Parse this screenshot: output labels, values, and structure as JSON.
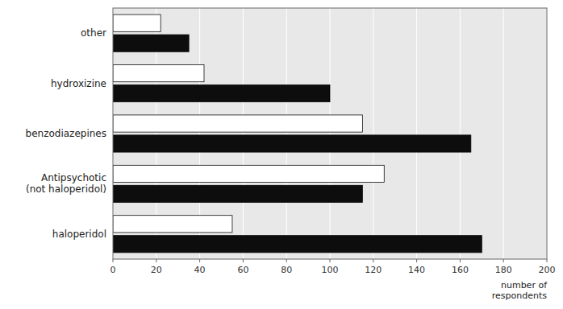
{
  "chart_data": {
    "type": "bar",
    "orientation": "horizontal",
    "categories": [
      "haloperidol",
      "Antipsychotic\n(not haloperidol)",
      "benzodiazepines",
      "hydroxizine",
      "other"
    ],
    "series": [
      {
        "color": "#ffffff",
        "values": [
          55,
          125,
          115,
          42,
          22
        ]
      },
      {
        "color": "#0d0d0d",
        "values": [
          170,
          115,
          165,
          100,
          35
        ]
      }
    ],
    "xlim": [
      0,
      200
    ],
    "xticks": [
      0,
      20,
      40,
      60,
      80,
      100,
      120,
      140,
      160,
      180,
      200
    ],
    "xlabel": "number of\nrespondents",
    "grid": true
  }
}
